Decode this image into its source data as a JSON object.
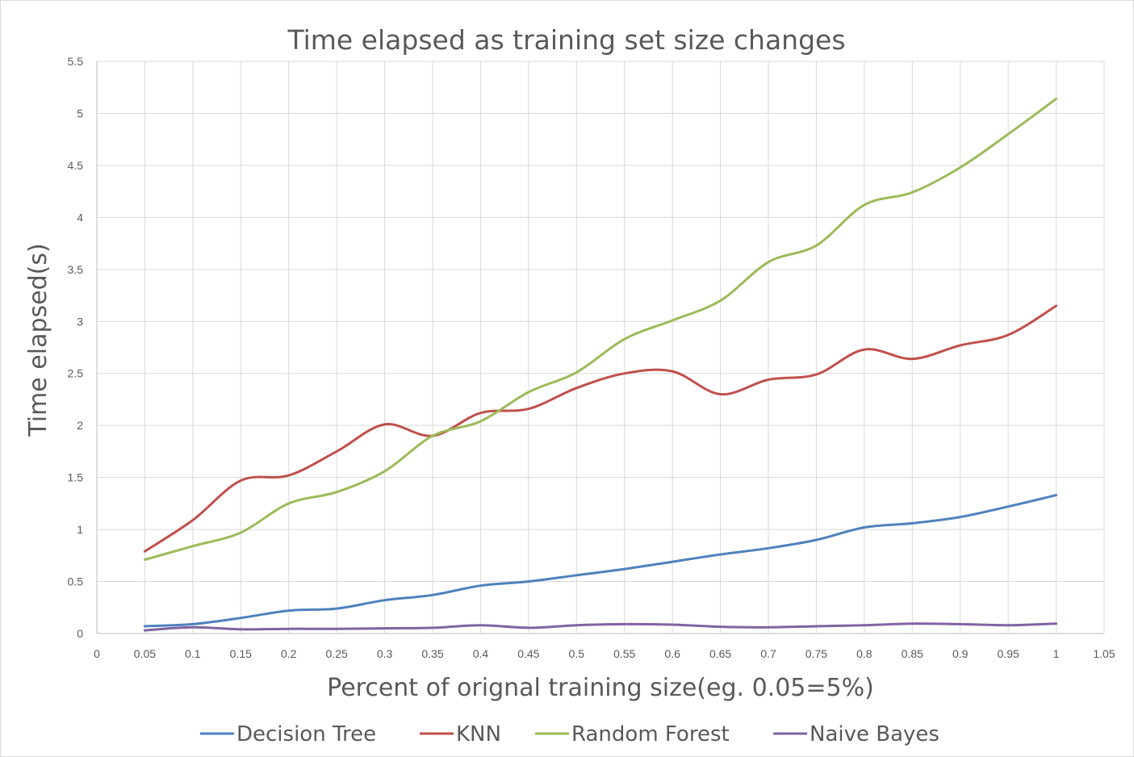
{
  "chart_data": {
    "type": "line",
    "title": "Time elapsed as training set size changes",
    "xlabel": "Percent  of orignal training size(eg. 0.05=5%)",
    "ylabel": "Time elapsed(s)",
    "xlim": [
      0,
      1.05
    ],
    "ylim": [
      0,
      5.5
    ],
    "x_ticks": [
      "0",
      "0.05",
      "0.1",
      "0.15",
      "0.2",
      "0.25",
      "0.3",
      "0.35",
      "0.4",
      "0.45",
      "0.5",
      "0.55",
      "0.6",
      "0.65",
      "0.7",
      "0.75",
      "0.8",
      "0.85",
      "0.9",
      "0.95",
      "1",
      "1.05"
    ],
    "y_ticks": [
      "0",
      "0.5",
      "1",
      "1.5",
      "2",
      "2.5",
      "3",
      "3.5",
      "4",
      "4.5",
      "5",
      "5.5"
    ],
    "grid": true,
    "smooth": true,
    "legend_position": "bottom",
    "x": [
      0.05,
      0.1,
      0.15,
      0.2,
      0.25,
      0.3,
      0.35,
      0.4,
      0.45,
      0.5,
      0.55,
      0.6,
      0.65,
      0.7,
      0.75,
      0.8,
      0.85,
      0.9,
      0.95,
      1.0
    ],
    "series": [
      {
        "name": "Decision Tree",
        "color": "#4f81bd",
        "values": [
          0.07,
          0.09,
          0.15,
          0.22,
          0.24,
          0.32,
          0.37,
          0.46,
          0.5,
          0.56,
          0.62,
          0.69,
          0.76,
          0.82,
          0.9,
          1.02,
          1.06,
          1.12,
          1.22,
          1.33
        ]
      },
      {
        "name": "KNN",
        "color": "#c0504d",
        "values": [
          0.79,
          1.09,
          1.47,
          1.52,
          1.75,
          2.01,
          1.9,
          2.12,
          2.16,
          2.36,
          2.5,
          2.52,
          2.3,
          2.44,
          2.49,
          2.73,
          2.64,
          2.77,
          2.87,
          3.15
        ]
      },
      {
        "name": "Random Forest",
        "color": "#9bbb59",
        "values": [
          0.71,
          0.84,
          0.97,
          1.25,
          1.36,
          1.56,
          1.9,
          2.04,
          2.32,
          2.51,
          2.83,
          3.01,
          3.2,
          3.57,
          3.73,
          4.12,
          4.24,
          4.48,
          4.8,
          5.14
        ]
      },
      {
        "name": "Naive Bayes",
        "color": "#8064a2",
        "values": [
          0.03,
          0.06,
          0.04,
          0.045,
          0.045,
          0.05,
          0.055,
          0.08,
          0.055,
          0.08,
          0.09,
          0.085,
          0.065,
          0.06,
          0.07,
          0.08,
          0.095,
          0.09,
          0.08,
          0.095
        ]
      }
    ]
  }
}
